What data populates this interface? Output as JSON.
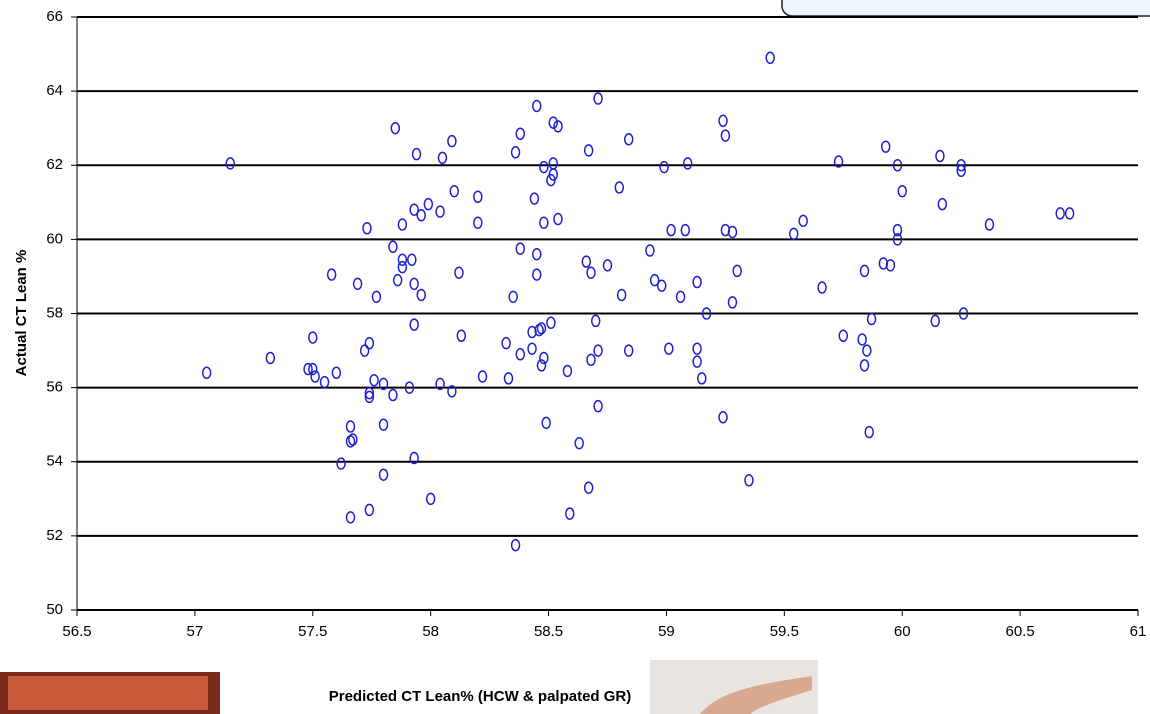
{
  "chart_data": {
    "type": "scatter",
    "xlabel": "Predicted CT Lean% (HCW & palpated GR)",
    "ylabel": "Actual CT Lean %",
    "xlim": [
      56.5,
      61
    ],
    "xticks": [
      56.5,
      57,
      57.5,
      58,
      58.5,
      59,
      59.5,
      60,
      60.5,
      61
    ],
    "ylim": [
      50,
      66
    ],
    "yticks": [
      50,
      52,
      54,
      56,
      58,
      60,
      62,
      64,
      66
    ],
    "grid": true,
    "color": "#1f1fd0",
    "x": [
      57.05,
      57.15,
      57.32,
      57.48,
      57.5,
      57.5,
      57.51,
      57.55,
      57.58,
      57.6,
      57.62,
      57.66,
      57.66,
      57.66,
      57.67,
      57.69,
      57.72,
      57.73,
      57.74,
      57.74,
      57.74,
      57.74,
      57.76,
      57.77,
      57.8,
      57.8,
      57.8,
      57.84,
      57.84,
      57.85,
      57.86,
      57.88,
      57.88,
      57.88,
      57.91,
      57.92,
      57.93,
      57.93,
      57.93,
      57.93,
      57.94,
      57.96,
      57.96,
      57.99,
      58.0,
      58.04,
      58.04,
      58.05,
      58.09,
      58.09,
      58.1,
      58.12,
      58.13,
      58.2,
      58.2,
      58.22,
      58.32,
      58.33,
      58.35,
      58.36,
      58.36,
      58.38,
      58.38,
      58.38,
      58.43,
      58.43,
      58.44,
      58.45,
      58.45,
      58.45,
      58.46,
      58.47,
      58.47,
      58.48,
      58.48,
      58.48,
      58.49,
      58.51,
      58.51,
      58.52,
      58.52,
      58.52,
      58.54,
      58.54,
      58.58,
      58.59,
      58.63,
      58.66,
      58.67,
      58.67,
      58.68,
      58.68,
      58.7,
      58.71,
      58.71,
      58.71,
      58.75,
      58.8,
      58.81,
      58.84,
      58.84,
      58.93,
      58.95,
      58.98,
      58.99,
      59.01,
      59.02,
      59.06,
      59.08,
      59.09,
      59.13,
      59.13,
      59.13,
      59.15,
      59.17,
      59.24,
      59.24,
      59.25,
      59.25,
      59.28,
      59.28,
      59.3,
      59.35,
      59.44,
      59.54,
      59.58,
      59.66,
      59.73,
      59.75,
      59.83,
      59.84,
      59.84,
      59.85,
      59.86,
      59.87,
      59.92,
      59.93,
      59.95,
      59.98,
      59.98,
      59.98,
      60.0,
      60.14,
      60.16,
      60.17,
      60.25,
      60.25,
      60.26,
      60.37,
      60.67,
      60.71
    ],
    "y": [
      56.4,
      62.05,
      56.8,
      56.5,
      57.35,
      56.5,
      56.3,
      56.15,
      59.05,
      56.4,
      53.95,
      54.95,
      52.5,
      54.55,
      54.6,
      58.8,
      57.0,
      60.3,
      57.2,
      55.75,
      55.85,
      52.7,
      56.2,
      58.45,
      56.1,
      55.0,
      53.65,
      59.8,
      55.8,
      63.0,
      58.9,
      60.4,
      59.45,
      59.25,
      56.0,
      59.45,
      60.8,
      58.8,
      57.7,
      54.1,
      62.3,
      60.65,
      58.5,
      60.95,
      53.0,
      60.75,
      56.1,
      62.2,
      62.65,
      55.9,
      61.3,
      59.1,
      57.4,
      61.15,
      60.45,
      56.3,
      57.2,
      56.25,
      58.45,
      62.35,
      51.75,
      62.85,
      59.75,
      56.9,
      57.5,
      57.05,
      61.1,
      63.6,
      59.6,
      59.05,
      57.55,
      57.6,
      56.6,
      56.8,
      61.95,
      60.45,
      55.05,
      61.6,
      57.75,
      62.05,
      61.75,
      63.15,
      63.05,
      60.55,
      56.45,
      52.6,
      54.5,
      59.4,
      62.4,
      53.3,
      56.75,
      59.1,
      57.8,
      63.8,
      57.0,
      55.5,
      59.3,
      61.4,
      58.5,
      62.7,
      57.0,
      59.7,
      58.9,
      58.75,
      61.95,
      57.05,
      60.25,
      58.45,
      60.25,
      62.05,
      58.85,
      57.05,
      56.7,
      56.25,
      58.0,
      63.2,
      55.2,
      62.8,
      60.25,
      60.2,
      58.3,
      59.15,
      53.5,
      64.9,
      60.15,
      60.5,
      58.7,
      62.1,
      57.4,
      57.3,
      59.15,
      56.6,
      57.0,
      54.8,
      57.85,
      59.35,
      62.5,
      59.3,
      62.0,
      60.25,
      60.0,
      61.3,
      57.8,
      62.25,
      60.95,
      62.0,
      61.85,
      58.0,
      60.4,
      60.7,
      60.7
    ]
  }
}
